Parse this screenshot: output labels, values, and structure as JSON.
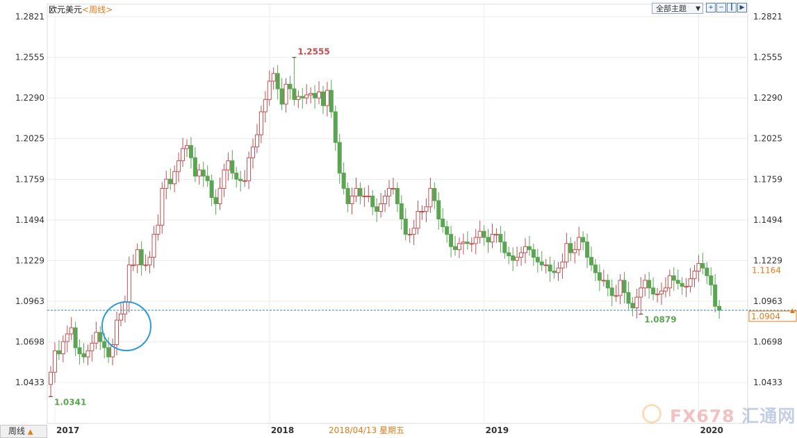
{
  "header": {
    "symbol": "欧元美元",
    "period": "<周线>",
    "theme_button": "全部主题",
    "theme_arrow": "▼",
    "tool_icons": [
      "zoom-icon",
      "zoom-out-icon",
      "candle-icon",
      "line-icon",
      "fullscreen-icon"
    ]
  },
  "footer": {
    "period_button": "周线",
    "period_arrow": "▲",
    "hover_date": "2018/04/13 星期五"
  },
  "watermark": {
    "brand": "FX678",
    "brand_cn": "汇通网"
  },
  "colors": {
    "up": "#c24e50",
    "down": "#5aa552",
    "grid": "#ececec",
    "dashed_line": "#2a8aa8",
    "current_price": "#e07b1a",
    "circle": "#2a9ad8"
  },
  "chart_data": {
    "type": "candlestick",
    "symbol": "欧元美元",
    "period": "周线",
    "y_ticks": [
      1.0433,
      1.0698,
      1.0963,
      1.1229,
      1.1494,
      1.1759,
      1.2025,
      1.229,
      1.2555,
      1.2821
    ],
    "ylim": [
      1.0256,
      1.2821
    ],
    "x_labels": [
      "2017",
      "2018",
      "2019",
      "2020"
    ],
    "x_label_weeks": [
      1,
      53,
      105,
      157
    ],
    "week_count": 165,
    "annotations": {
      "high": {
        "value": 1.2555,
        "label": "1.2555",
        "week": 60
      },
      "low_2017": {
        "value": 1.0341,
        "label": "1.0341",
        "week": 1
      },
      "low_2019": {
        "value": 1.0879,
        "label": "1.0879",
        "week": 144
      }
    },
    "current_price": {
      "value": 1.0904,
      "label": "1.0904"
    },
    "prev_price": {
      "value": 1.1164,
      "label": "1.1164"
    },
    "highlight_circle_week": 18,
    "closes": [
      1.05,
      1.064,
      1.062,
      1.07,
      1.075,
      1.079,
      1.066,
      1.062,
      1.06,
      1.064,
      1.069,
      1.076,
      1.07,
      1.066,
      1.06,
      1.068,
      1.084,
      1.088,
      1.096,
      1.12,
      1.12,
      1.13,
      1.12,
      1.12,
      1.125,
      1.14,
      1.146,
      1.17,
      1.176,
      1.173,
      1.181,
      1.188,
      1.196,
      1.198,
      1.19,
      1.178,
      1.182,
      1.178,
      1.175,
      1.164,
      1.16,
      1.17,
      1.182,
      1.188,
      1.18,
      1.176,
      1.175,
      1.175,
      1.19,
      1.197,
      1.205,
      1.22,
      1.228,
      1.24,
      1.245,
      1.235,
      1.225,
      1.238,
      1.235,
      1.228,
      1.23,
      1.229,
      1.231,
      1.232,
      1.229,
      1.233,
      1.224,
      1.234,
      1.22,
      1.2,
      1.18,
      1.17,
      1.16,
      1.165,
      1.17,
      1.165,
      1.165,
      1.165,
      1.158,
      1.155,
      1.16,
      1.165,
      1.17,
      1.17,
      1.16,
      1.15,
      1.14,
      1.14,
      1.144,
      1.155,
      1.155,
      1.158,
      1.17,
      1.162,
      1.15,
      1.145,
      1.14,
      1.132,
      1.13,
      1.134,
      1.135,
      1.134,
      1.134,
      1.138,
      1.142,
      1.138,
      1.135,
      1.14,
      1.14,
      1.135,
      1.128,
      1.126,
      1.123,
      1.125,
      1.128,
      1.132,
      1.13,
      1.125,
      1.122,
      1.12,
      1.12,
      1.116,
      1.115,
      1.118,
      1.122,
      1.134,
      1.128,
      1.13,
      1.138,
      1.135,
      1.125,
      1.12,
      1.115,
      1.11,
      1.11,
      1.105,
      1.1,
      1.1,
      1.11,
      1.102,
      1.095,
      1.092,
      1.099,
      1.105,
      1.11,
      1.105,
      1.101,
      1.101,
      1.103,
      1.105,
      1.113,
      1.11,
      1.108,
      1.106,
      1.106,
      1.111,
      1.116,
      1.121,
      1.118,
      1.113,
      1.107,
      1.093,
      1.0904
    ]
  }
}
